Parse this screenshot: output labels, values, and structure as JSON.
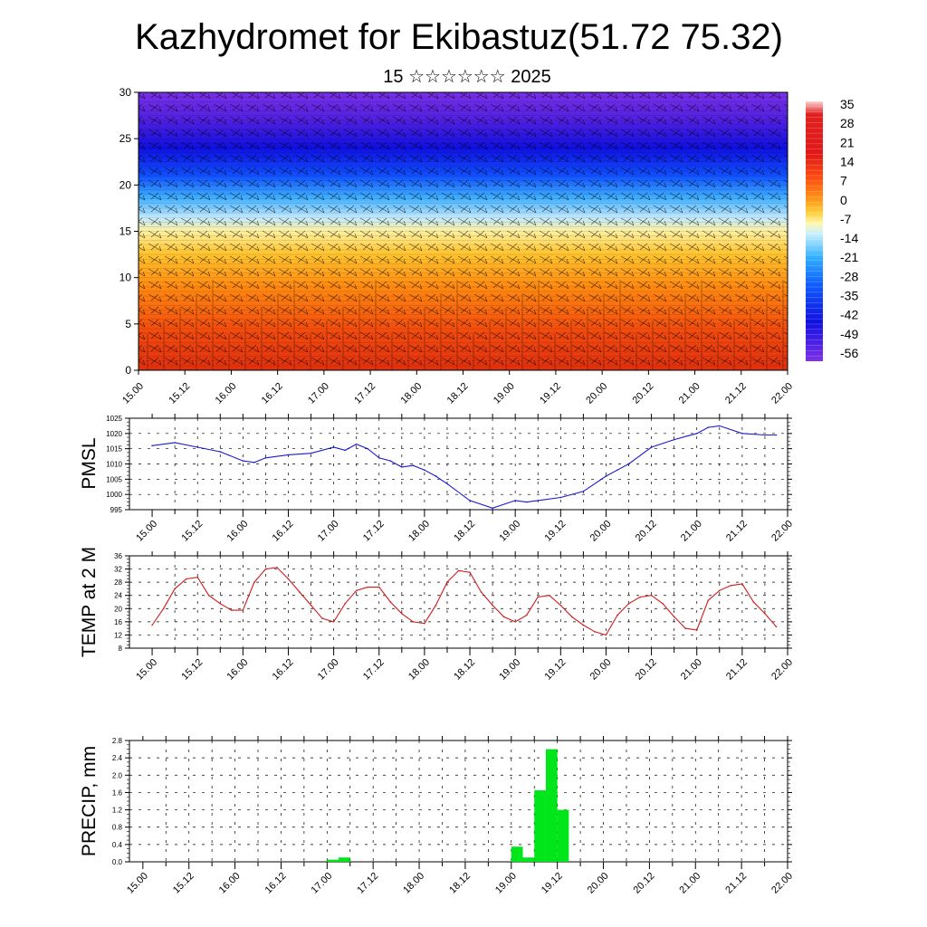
{
  "title": "Kazhydromet for Ekibastuz(51.72 75.32)",
  "subtitle": "15 ☆☆☆☆☆☆ 2025",
  "x_ticks": [
    "15.00",
    "15.12",
    "16.00",
    "16.12",
    "17.00",
    "17.12",
    "18.00",
    "18.12",
    "19.00",
    "19.12",
    "20.00",
    "20.12",
    "21.00",
    "21.12",
    "22.00"
  ],
  "colors": {
    "pmsl": "#1a1ad0",
    "temp": "#d01a1a",
    "precip": "#00e61a"
  },
  "chart_data": [
    {
      "type": "heatmap",
      "ylim": [
        0,
        30
      ],
      "y_ticks": [
        "0",
        "5",
        "10",
        "15",
        "20",
        "25",
        "30"
      ],
      "colorbar_labels": [
        "35",
        "28",
        "21",
        "14",
        "7",
        "0",
        "-7",
        "-14",
        "-21",
        "-28",
        "-35",
        "-42",
        "-49",
        "-56"
      ],
      "colorbar_range": [
        -60,
        38
      ],
      "xlim_hours": [
        0,
        168
      ]
    },
    {
      "type": "line",
      "ylabel": "PMSL",
      "ylim": [
        995,
        1025
      ],
      "y_ticks": [
        "995",
        "1000",
        "1005",
        "1010",
        "1015",
        "1020",
        "1025"
      ],
      "x_hours": [
        0,
        6,
        12,
        18,
        24,
        27,
        30,
        36,
        42,
        48,
        51,
        54,
        57,
        60,
        63,
        66,
        69,
        72,
        75,
        78,
        84,
        90,
        96,
        99,
        102,
        108,
        114,
        120,
        123,
        126,
        132,
        138,
        144,
        147,
        150,
        156,
        162,
        165
      ],
      "values": [
        1016,
        1017,
        1015.5,
        1014,
        1011,
        1010.5,
        1012,
        1013,
        1013.5,
        1015.5,
        1014.5,
        1016.5,
        1015,
        1012,
        1011,
        1009,
        1009.5,
        1008,
        1006,
        1003.5,
        998,
        995.5,
        998,
        997.5,
        998,
        999,
        1001,
        1006,
        1008,
        1010,
        1015.5,
        1018,
        1020,
        1022,
        1022.5,
        1020,
        1019.5,
        1019.5
      ]
    },
    {
      "type": "line",
      "ylabel": "TEMP at 2 M",
      "ylim": [
        8,
        36
      ],
      "y_ticks": [
        "8",
        "12",
        "16",
        "20",
        "24",
        "28",
        "32",
        "36"
      ],
      "x_hours": [
        0,
        3,
        6,
        9,
        12,
        15,
        18,
        21,
        24,
        27,
        30,
        33,
        36,
        39,
        42,
        45,
        48,
        51,
        54,
        57,
        60,
        63,
        66,
        69,
        72,
        75,
        78,
        81,
        84,
        87,
        90,
        93,
        96,
        99,
        102,
        105,
        108,
        111,
        114,
        117,
        120,
        123,
        126,
        129,
        132,
        135,
        138,
        141,
        144,
        147,
        150,
        153,
        156,
        159,
        162,
        165
      ],
      "values": [
        15,
        20,
        26,
        29,
        29.5,
        24,
        21.5,
        19.5,
        19.5,
        28,
        32,
        32.5,
        29,
        25,
        21,
        17,
        16,
        21.5,
        25.5,
        26.5,
        26.5,
        22,
        18.5,
        16,
        15.5,
        21,
        28,
        31.5,
        31,
        25,
        21,
        17.5,
        16,
        18,
        23.5,
        24,
        21,
        17.5,
        15,
        13,
        12,
        18,
        21.5,
        23.5,
        24,
        21.5,
        17.5,
        14,
        13.5,
        22.5,
        25.5,
        27,
        27.5,
        22,
        18.5,
        14.5
      ]
    },
    {
      "type": "bar",
      "ylabel": "PRECIP, mm",
      "ylim": [
        0,
        2.8
      ],
      "y_ticks": [
        "0.0",
        "0.4",
        "0.8",
        "1.2",
        "1.6",
        "2.0",
        "2.4",
        "2.8"
      ],
      "bar_hours": [
        48,
        51,
        96,
        99,
        102,
        105,
        108
      ],
      "values": [
        0.05,
        0.1,
        0.35,
        0.1,
        1.65,
        2.6,
        1.2
      ],
      "bar_width_hours": 3
    }
  ]
}
